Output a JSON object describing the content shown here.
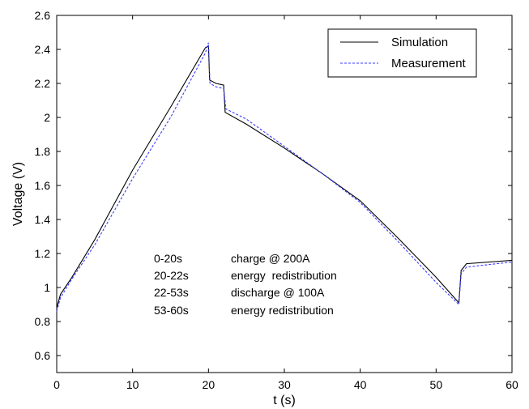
{
  "chart_data": {
    "type": "line",
    "title": "",
    "xlabel": "t (s)",
    "ylabel": "Voltage (V)",
    "xlim": [
      0,
      60
    ],
    "ylim": [
      0.5,
      2.6
    ],
    "xticks": [
      0,
      10,
      20,
      30,
      40,
      50,
      60
    ],
    "xtick_labels": [
      "0",
      "10",
      "20",
      "30",
      "40",
      "50",
      "60"
    ],
    "yticks": [
      0.6,
      0.8,
      1.0,
      1.2,
      1.4,
      1.6,
      1.8,
      2.0,
      2.2,
      2.4,
      2.6
    ],
    "ytick_labels": [
      "0.6",
      "0.8",
      "1",
      "1.2",
      "1.4",
      "1.6",
      "1.8",
      "2",
      "2.2",
      "2.4",
      "2.6"
    ],
    "grid": false,
    "legend_position": "top-right",
    "series": [
      {
        "name": "Simulation",
        "color": "#000000",
        "style": "solid",
        "points": [
          [
            0,
            0.88
          ],
          [
            0.5,
            0.96
          ],
          [
            2,
            1.06
          ],
          [
            5,
            1.28
          ],
          [
            10,
            1.69
          ],
          [
            15,
            2.06
          ],
          [
            19.6,
            2.41
          ],
          [
            20,
            2.42
          ],
          [
            20.15,
            2.22
          ],
          [
            21,
            2.2
          ],
          [
            22,
            2.19
          ],
          [
            22.2,
            2.03
          ],
          [
            25,
            1.96
          ],
          [
            30,
            1.82
          ],
          [
            35,
            1.67
          ],
          [
            40,
            1.51
          ],
          [
            45,
            1.29
          ],
          [
            50,
            1.06
          ],
          [
            53,
            0.91
          ],
          [
            53.3,
            1.1
          ],
          [
            54,
            1.14
          ],
          [
            60,
            1.16
          ]
        ]
      },
      {
        "name": "Measurement",
        "color": "#3b3bff",
        "style": "dashed",
        "points": [
          [
            0,
            0.86
          ],
          [
            0.5,
            0.94
          ],
          [
            2,
            1.05
          ],
          [
            5,
            1.25
          ],
          [
            10,
            1.64
          ],
          [
            15,
            2.0
          ],
          [
            19.6,
            2.38
          ],
          [
            20,
            2.44
          ],
          [
            20.2,
            2.2
          ],
          [
            21,
            2.18
          ],
          [
            22,
            2.17
          ],
          [
            22.3,
            2.05
          ],
          [
            25,
            1.99
          ],
          [
            30,
            1.83
          ],
          [
            35,
            1.67
          ],
          [
            40,
            1.5
          ],
          [
            45,
            1.27
          ],
          [
            50,
            1.03
          ],
          [
            53,
            0.9
          ],
          [
            53.3,
            1.08
          ],
          [
            54,
            1.12
          ],
          [
            60,
            1.15
          ]
        ]
      }
    ],
    "annotations": [
      {
        "range": "0-20s",
        "text": "charge @ 200A"
      },
      {
        "range": "20-22s",
        "text": "energy  redistribution"
      },
      {
        "range": "22-53s",
        "text": "discharge @ 100A"
      },
      {
        "range": "53-60s",
        "text": "energy redistribution"
      }
    ]
  }
}
